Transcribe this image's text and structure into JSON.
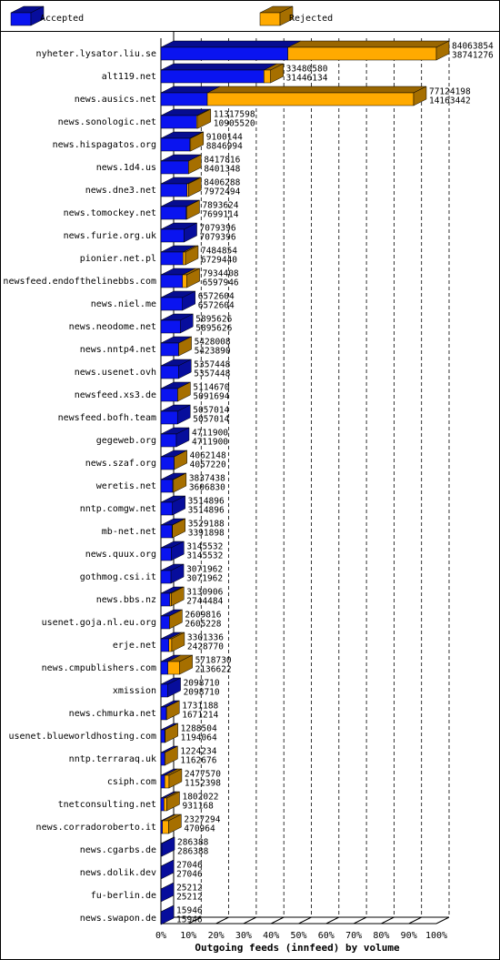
{
  "chart_data": {
    "type": "bar3d-stacked",
    "xlabel": "Outgoing feeds (innfeed) by volume",
    "legend": [
      {
        "name": "Accepted",
        "color": "#0a14f0"
      },
      {
        "name": "Rejected",
        "color": "#ffaa00"
      }
    ],
    "categories": [
      "nyheter.lysator.liu.se",
      "alt119.net",
      "news.ausics.net",
      "news.sonologic.net",
      "news.hispagatos.org",
      "news.1d4.us",
      "news.dne3.net",
      "news.tomockey.net",
      "news.furie.org.uk",
      "pionier.net.pl",
      "newsfeed.endofthelinebbs.com",
      "news.niel.me",
      "news.neodome.net",
      "news.nntp4.net",
      "news.usenet.ovh",
      "newsfeed.xs3.de",
      "newsfeed.bofh.team",
      "gegeweb.org",
      "news.szaf.org",
      "weretis.net",
      "nntp.comgw.net",
      "mb-net.net",
      "news.quux.org",
      "gothmog.csi.it",
      "news.bbs.nz",
      "usenet.goja.nl.eu.org",
      "erje.net",
      "news.cmpublishers.com",
      "xmission",
      "news.chmurka.net",
      "usenet.blueworldhosting.com",
      "nntp.terraraq.uk",
      "csiph.com",
      "tnetconsulting.net",
      "news.corradoroberto.it",
      "news.cgarbs.de",
      "news.dolik.dev",
      "fu-berlin.de",
      "news.swapon.de"
    ],
    "totals": [
      84063854,
      33480580,
      77124198,
      11317598,
      9100144,
      8417816,
      8406288,
      7893624,
      7079396,
      7484854,
      7934408,
      6572604,
      5895626,
      5428008,
      5357448,
      5114670,
      5057014,
      4711900,
      4062148,
      3837438,
      3514896,
      3529188,
      3145532,
      3071962,
      3130906,
      2609816,
      3301336,
      5718730,
      2098710,
      1731188,
      1288504,
      1224234,
      2477570,
      1802022,
      2327294,
      286388,
      27046,
      25212,
      15946
    ],
    "accepted": [
      38741276,
      31446134,
      14163442,
      10905520,
      8846994,
      8401348,
      7972494,
      7699114,
      7079396,
      6729440,
      6597946,
      6572604,
      5895626,
      5423890,
      5357448,
      5091694,
      5057014,
      4711900,
      4057220,
      3606830,
      3514896,
      3391898,
      3145532,
      3071962,
      2744484,
      2605228,
      2428770,
      2136622,
      2098710,
      1671214,
      1194064,
      1162676,
      1152398,
      931168,
      470964,
      286388,
      27046,
      25212,
      15946
    ],
    "xlim": [
      0,
      100
    ],
    "xticks": [
      {
        "value": 0,
        "label": "0%"
      },
      {
        "value": 10,
        "label": "10%"
      },
      {
        "value": 20,
        "label": "20%"
      },
      {
        "value": 30,
        "label": "30%"
      },
      {
        "value": 40,
        "label": "40%"
      },
      {
        "value": 50,
        "label": "50%"
      },
      {
        "value": 60,
        "label": "60%"
      },
      {
        "value": 70,
        "label": "70%"
      },
      {
        "value": 80,
        "label": "80%"
      },
      {
        "value": 90,
        "label": "90%"
      },
      {
        "value": 100,
        "label": "100%"
      }
    ],
    "grid": true
  }
}
